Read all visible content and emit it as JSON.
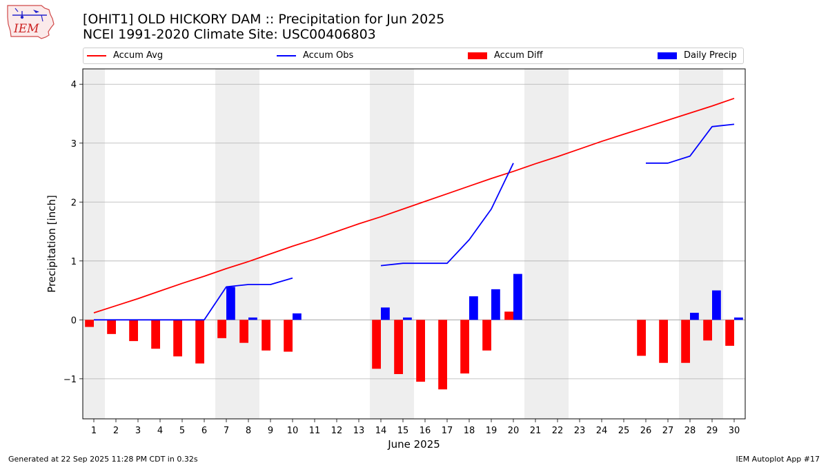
{
  "header": {
    "logo_text": "IEM",
    "title_line1": "[OHIT1] OLD HICKORY DAM :: Precipitation for Jun 2025",
    "title_line2": "NCEI 1991-2020 Climate Site: USC00406803"
  },
  "footer": {
    "generated": "Generated at 22 Sep 2025 11:28 PM CDT in 0.32s",
    "app": "IEM Autoplot App #17"
  },
  "colors": {
    "avg": "#ff0000",
    "obs": "#0000ff",
    "diff": "#ff0000",
    "daily": "#0000ff",
    "weekend_band": "#eeeeee",
    "grid": "#b0b0b0"
  },
  "chart_data": {
    "type": "bar",
    "xlabel": "June 2025",
    "ylabel": "Precipitation [inch]",
    "ylim": [
      -1.68,
      4.26
    ],
    "yticks": [
      -1,
      0,
      1,
      2,
      3,
      4
    ],
    "ytick_labels": [
      "−1",
      "0",
      "1",
      "2",
      "3",
      "4"
    ],
    "grid": "horizontal",
    "legend_position": "top",
    "x": [
      1,
      2,
      3,
      4,
      5,
      6,
      7,
      8,
      9,
      10,
      11,
      12,
      13,
      14,
      15,
      16,
      17,
      18,
      19,
      20,
      21,
      22,
      23,
      24,
      25,
      26,
      27,
      28,
      29,
      30
    ],
    "weekend_days": [
      1,
      7,
      8,
      14,
      15,
      21,
      22,
      28,
      29
    ],
    "series": [
      {
        "name": "Accum Avg",
        "type": "line",
        "values": [
          0.12,
          0.24,
          0.36,
          0.49,
          0.62,
          0.74,
          0.87,
          0.99,
          1.12,
          1.25,
          1.37,
          1.5,
          1.63,
          1.75,
          1.88,
          2.01,
          2.14,
          2.27,
          2.4,
          2.52,
          2.65,
          2.77,
          2.9,
          3.03,
          3.15,
          3.27,
          3.39,
          3.51,
          3.63,
          3.76
        ]
      },
      {
        "name": "Accum Obs",
        "type": "line",
        "values": [
          0,
          0,
          0,
          0,
          0,
          0,
          0.56,
          0.6,
          0.6,
          0.71,
          null,
          null,
          null,
          0.92,
          0.96,
          0.96,
          0.96,
          1.36,
          1.88,
          2.66,
          null,
          null,
          null,
          null,
          null,
          2.66,
          2.66,
          2.78,
          3.28,
          3.32
        ]
      },
      {
        "name": "Accum Diff",
        "type": "bar",
        "values": [
          -0.12,
          -0.24,
          -0.36,
          -0.49,
          -0.62,
          -0.74,
          -0.31,
          -0.39,
          -0.52,
          -0.54,
          null,
          null,
          null,
          -0.83,
          -0.92,
          -1.05,
          -1.18,
          -0.91,
          -0.52,
          0.14,
          null,
          null,
          null,
          null,
          null,
          -0.61,
          -0.73,
          -0.73,
          -0.35,
          -0.44
        ]
      },
      {
        "name": "Daily Precip",
        "type": "bar",
        "values": [
          0,
          0,
          0,
          0,
          0,
          0,
          0.56,
          0.04,
          0,
          0.11,
          null,
          null,
          null,
          0.21,
          0.04,
          0,
          0,
          0.4,
          0.52,
          0.78,
          null,
          null,
          null,
          null,
          null,
          0,
          0,
          0.12,
          0.5,
          0.04
        ]
      }
    ]
  }
}
